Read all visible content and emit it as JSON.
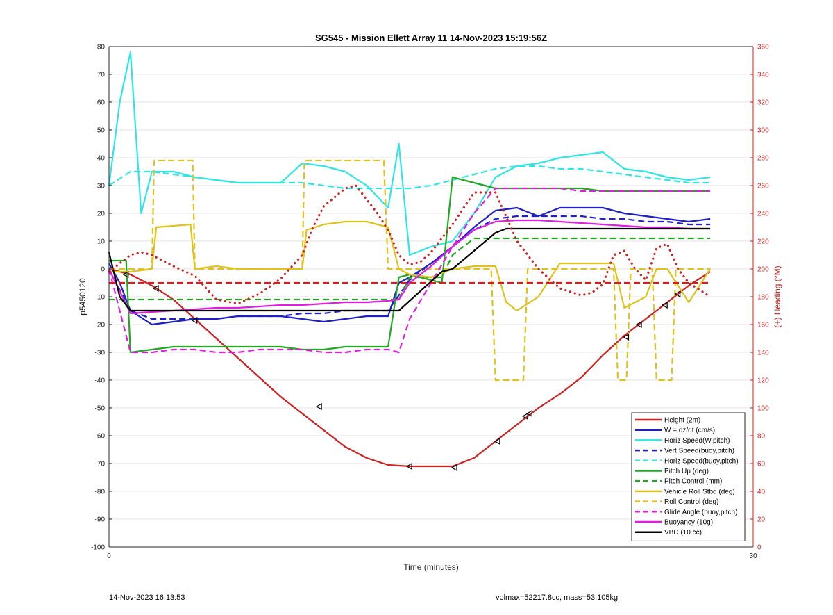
{
  "chart_data": {
    "type": "line",
    "title": "SG545 - Mission Ellett Array 11 14-Nov-2023 15:19:56Z",
    "xlabel": "Time (minutes)",
    "ylabel": "p5450120",
    "ylabel_right": "(+) Heading (°M)",
    "xlim": [
      0,
      30
    ],
    "ylim": [
      -100,
      80
    ],
    "ylim_right": [
      0,
      360
    ],
    "x_ticks": [
      "0",
      "30"
    ],
    "y_ticks": [
      "80",
      "70",
      "60",
      "50",
      "40",
      "30",
      "20",
      "10",
      "0",
      "-10",
      "-20",
      "-30",
      "-40",
      "-50",
      "-60",
      "-70",
      "-80",
      "-90",
      "-100"
    ],
    "y_ticks_right": [
      "360",
      "340",
      "320",
      "300",
      "280",
      "260",
      "240",
      "220",
      "200",
      "180",
      "160",
      "140",
      "120",
      "100",
      "80",
      "60",
      "40",
      "20",
      "0"
    ],
    "grid": true,
    "legend_position": "bottom-right",
    "series": [
      {
        "name": "Height (2m)",
        "color": "#d21f1f",
        "style": "solid",
        "axis": "left",
        "x": [
          0,
          1,
          2,
          3,
          4,
          5,
          6,
          7,
          8,
          9,
          10,
          11,
          12,
          13,
          14,
          15,
          16,
          17,
          18,
          19,
          20,
          21,
          22,
          23,
          24,
          25,
          26,
          27,
          28
        ],
        "y": [
          0,
          -2,
          -6,
          -11,
          -18,
          -25,
          -32,
          -39,
          -46,
          -52,
          -58,
          -64,
          -68,
          -70.5,
          -71,
          -71,
          -71,
          -68,
          -62,
          -56,
          -50,
          -45,
          -39,
          -31,
          -24,
          -18,
          -12,
          -6,
          -1
        ]
      },
      {
        "name": "W = dz/dt (cm/s)",
        "color": "#1f1fc8",
        "style": "solid",
        "axis": "left",
        "x": [
          0,
          0.5,
          1,
          2,
          3,
          4,
          5,
          6,
          7,
          8,
          9,
          10,
          11,
          12,
          13,
          13.5,
          14,
          15,
          16,
          17,
          18,
          19,
          20,
          21,
          22,
          23,
          24,
          25,
          26,
          27,
          28
        ],
        "y": [
          2,
          -5,
          -15,
          -20,
          -19,
          -18,
          -18,
          -17,
          -17,
          -17,
          -18,
          -19,
          -18,
          -17,
          -17,
          -5,
          -3,
          2,
          8,
          15,
          21,
          22,
          19,
          22,
          22,
          22,
          20,
          19,
          18,
          17,
          18
        ]
      },
      {
        "name": "Horiz Speed(W,pitch)",
        "color": "#2ee6e6",
        "style": "solid",
        "axis": "left",
        "x": [
          0,
          0.5,
          1,
          1.5,
          2,
          3,
          4,
          5,
          6,
          7,
          8,
          9,
          10,
          11,
          12,
          13,
          13.5,
          14,
          15,
          16,
          17,
          18,
          19,
          20,
          21,
          22,
          23,
          24,
          25,
          26,
          27,
          28
        ],
        "y": [
          30,
          60,
          78,
          20,
          35,
          35,
          33,
          32,
          31,
          31,
          31,
          38,
          37,
          35,
          30,
          22,
          45,
          5,
          8,
          10,
          20,
          33,
          37,
          38,
          40,
          41,
          42,
          36,
          35,
          33,
          32,
          33
        ]
      },
      {
        "name": "Vert Speed(buoy,pitch)",
        "color": "#1f1fc8",
        "style": "dashed",
        "axis": "left",
        "x": [
          0,
          1,
          2,
          3,
          4,
          5,
          6,
          7,
          8,
          9,
          10,
          11,
          12,
          13,
          14,
          15,
          16,
          17,
          18,
          19,
          20,
          21,
          22,
          23,
          24,
          25,
          26,
          27,
          28
        ],
        "y": [
          0,
          -15,
          -18,
          -18,
          -18,
          -18,
          -17,
          -17,
          -17,
          -16,
          -16,
          -15,
          -15,
          -15,
          -4,
          2,
          8,
          14,
          18,
          19,
          19,
          19,
          19,
          18,
          18,
          17,
          17,
          16,
          16
        ]
      },
      {
        "name": "Horiz Speed(buoy,pitch)",
        "color": "#2ee6e6",
        "style": "dashed",
        "axis": "left",
        "x": [
          0,
          1,
          2,
          3,
          4,
          5,
          6,
          7,
          8,
          9,
          10,
          11,
          12,
          13,
          14,
          15,
          16,
          17,
          18,
          19,
          20,
          21,
          22,
          23,
          24,
          25,
          26,
          27,
          28
        ],
        "y": [
          30,
          35,
          35,
          34,
          33,
          32,
          31,
          31,
          31,
          31,
          30,
          29,
          29,
          29,
          29,
          30,
          32,
          34,
          36,
          37,
          37,
          36,
          36,
          35,
          34,
          33,
          32,
          31,
          31
        ]
      },
      {
        "name": "Pitch Up (deg)",
        "color": "#21a821",
        "style": "solid",
        "axis": "left",
        "x": [
          0,
          0.8,
          1,
          2,
          3,
          4,
          5,
          6,
          7,
          8,
          9,
          10,
          11,
          12,
          13,
          13.5,
          14,
          15,
          15.5,
          16,
          17,
          18,
          19,
          20,
          21,
          22,
          23,
          24,
          25,
          26,
          27,
          28
        ],
        "y": [
          3,
          3,
          -30,
          -29,
          -28,
          -28,
          -28,
          -28,
          -28,
          -28,
          -29,
          -29,
          -28,
          -28,
          -28,
          -3,
          -2,
          -4,
          -5,
          33,
          31,
          29,
          29,
          29,
          29,
          29,
          28,
          28,
          28,
          28,
          28,
          28
        ]
      },
      {
        "name": "Pitch Control (mm)",
        "color": "#21a821",
        "style": "dashed",
        "axis": "left",
        "x": [
          0,
          1,
          13.5,
          14,
          15,
          15.5,
          16,
          17,
          18,
          28
        ],
        "y": [
          -11,
          -11,
          -11,
          -3,
          -3,
          -3,
          5,
          11,
          11,
          11
        ]
      },
      {
        "name": "Vehicle Roll Stbd (deg)",
        "color": "#e0c21a",
        "style": "solid",
        "axis": "left",
        "x": [
          0,
          1,
          2,
          2.2,
          3.8,
          4,
          5,
          6,
          7,
          8,
          9,
          9.2,
          10,
          11,
          12,
          13,
          13.5,
          14,
          15,
          16,
          17,
          18,
          18.5,
          19,
          20,
          21,
          22,
          23,
          23.5,
          24,
          25,
          25.5,
          26,
          27,
          28
        ],
        "y": [
          -1,
          -1,
          0,
          15,
          16,
          0,
          1,
          0,
          0,
          0,
          0,
          14,
          16,
          17,
          17,
          15,
          0,
          -2,
          -3,
          0,
          1,
          1,
          -12,
          -15,
          -10,
          2,
          2,
          2,
          2,
          -14,
          -10,
          0,
          0,
          -12,
          0
        ]
      },
      {
        "name": "Roll Control (deg)",
        "color": "#e0c21a",
        "style": "dashed",
        "axis": "left",
        "x": [
          0,
          2,
          2.1,
          3.9,
          4,
          9,
          9.1,
          12.8,
          13,
          17.8,
          18,
          19.3,
          19.5,
          23.5,
          23.7,
          24.1,
          24.3,
          25.3,
          25.5,
          26.2,
          26.4,
          28
        ],
        "y": [
          0,
          0,
          39,
          39,
          0,
          0,
          39,
          39,
          0,
          0,
          -40,
          -40,
          0,
          0,
          -40,
          -40,
          0,
          0,
          -40,
          -40,
          0,
          0
        ]
      },
      {
        "name": "Glide Angle (buoy,pitch)",
        "color": "#e01ee0",
        "style": "dashed",
        "axis": "left",
        "x": [
          0,
          1,
          2,
          3,
          4,
          5,
          6,
          7,
          8,
          9,
          10,
          11,
          12,
          13,
          13.5,
          14,
          15,
          16,
          17,
          18,
          19,
          20,
          21,
          22,
          23,
          24,
          25,
          26,
          27,
          28
        ],
        "y": [
          0,
          -30,
          -30,
          -29,
          -29,
          -30,
          -30,
          -29,
          -29,
          -29,
          -30,
          -30,
          -29,
          -29,
          -30,
          -18,
          -5,
          8,
          20,
          29,
          29,
          29,
          29,
          28,
          28,
          28,
          28,
          28,
          28,
          28
        ]
      },
      {
        "name": "Buoyancy (10g)",
        "color": "#e01ee0",
        "style": "solid",
        "axis": "left",
        "x": [
          0,
          1,
          2,
          3,
          4,
          5,
          6,
          7,
          8,
          9,
          10,
          11,
          12,
          13,
          13.5,
          14,
          15,
          16,
          17,
          18,
          19,
          20,
          21,
          22,
          23,
          24,
          25,
          26,
          27,
          28
        ],
        "y": [
          0,
          -16,
          -15.5,
          -15,
          -14.5,
          -14,
          -14,
          -13.5,
          -13,
          -13,
          -12.5,
          -12,
          -12,
          -11.5,
          -11,
          -5,
          1,
          8,
          14,
          17,
          17.5,
          17.5,
          17,
          16.5,
          16,
          15.5,
          15,
          15,
          14.5,
          14.5
        ]
      },
      {
        "name": "VBD (10 cc)",
        "color": "#000000",
        "style": "solid",
        "axis": "left",
        "x": [
          0,
          0.5,
          1,
          4,
          8,
          12,
          13.5,
          15.5,
          16,
          18,
          18.5,
          24,
          28
        ],
        "y": [
          6,
          -10,
          -15,
          -15,
          -15,
          -15,
          -15,
          -1,
          0,
          13,
          14.5,
          14.5,
          14.5
        ]
      },
      {
        "name": "",
        "color": "#d21f1f",
        "style": "dashed",
        "axis": "left",
        "x": [
          0,
          28
        ],
        "y": [
          -5,
          -5
        ]
      },
      {
        "name": "",
        "color": "#d21f1f",
        "style": "dotted",
        "axis": "right",
        "x": [
          0,
          1,
          1.5,
          2,
          3,
          4,
          5,
          6,
          7,
          8,
          9,
          9.5,
          10,
          11,
          11.5,
          12,
          12.5,
          13,
          13.5,
          14,
          14.5,
          15,
          16,
          17,
          18,
          19,
          20,
          21,
          22,
          22.5,
          23,
          23.5,
          24,
          24.5,
          25,
          25.5,
          26,
          26.5,
          27,
          28
        ],
        "y": [
          198,
          210,
          212,
          210,
          202,
          195,
          178,
          175,
          182,
          193,
          210,
          230,
          245,
          258,
          260,
          250,
          240,
          228,
          210,
          203,
          205,
          212,
          232,
          255,
          255,
          220,
          200,
          186,
          181,
          183,
          189,
          210,
          213,
          200,
          192,
          215,
          218,
          200,
          190,
          180
        ]
      }
    ],
    "markers": {
      "symbol": "triangle-left",
      "x": [
        0.8,
        2.2,
        4,
        9.8,
        14,
        16.1,
        18.1,
        19.4,
        19.6,
        24.1,
        24.7,
        25.9,
        26.5
      ],
      "y": [
        -2,
        -7,
        -18.5,
        -49.5,
        -71,
        -71.5,
        -62,
        -53,
        -52,
        -24.5,
        -20,
        -13,
        -9
      ]
    }
  },
  "footer": {
    "left": "14-Nov-2023 16:13:53",
    "right": "volmax=52217.8cc, mass=53.105kg"
  }
}
